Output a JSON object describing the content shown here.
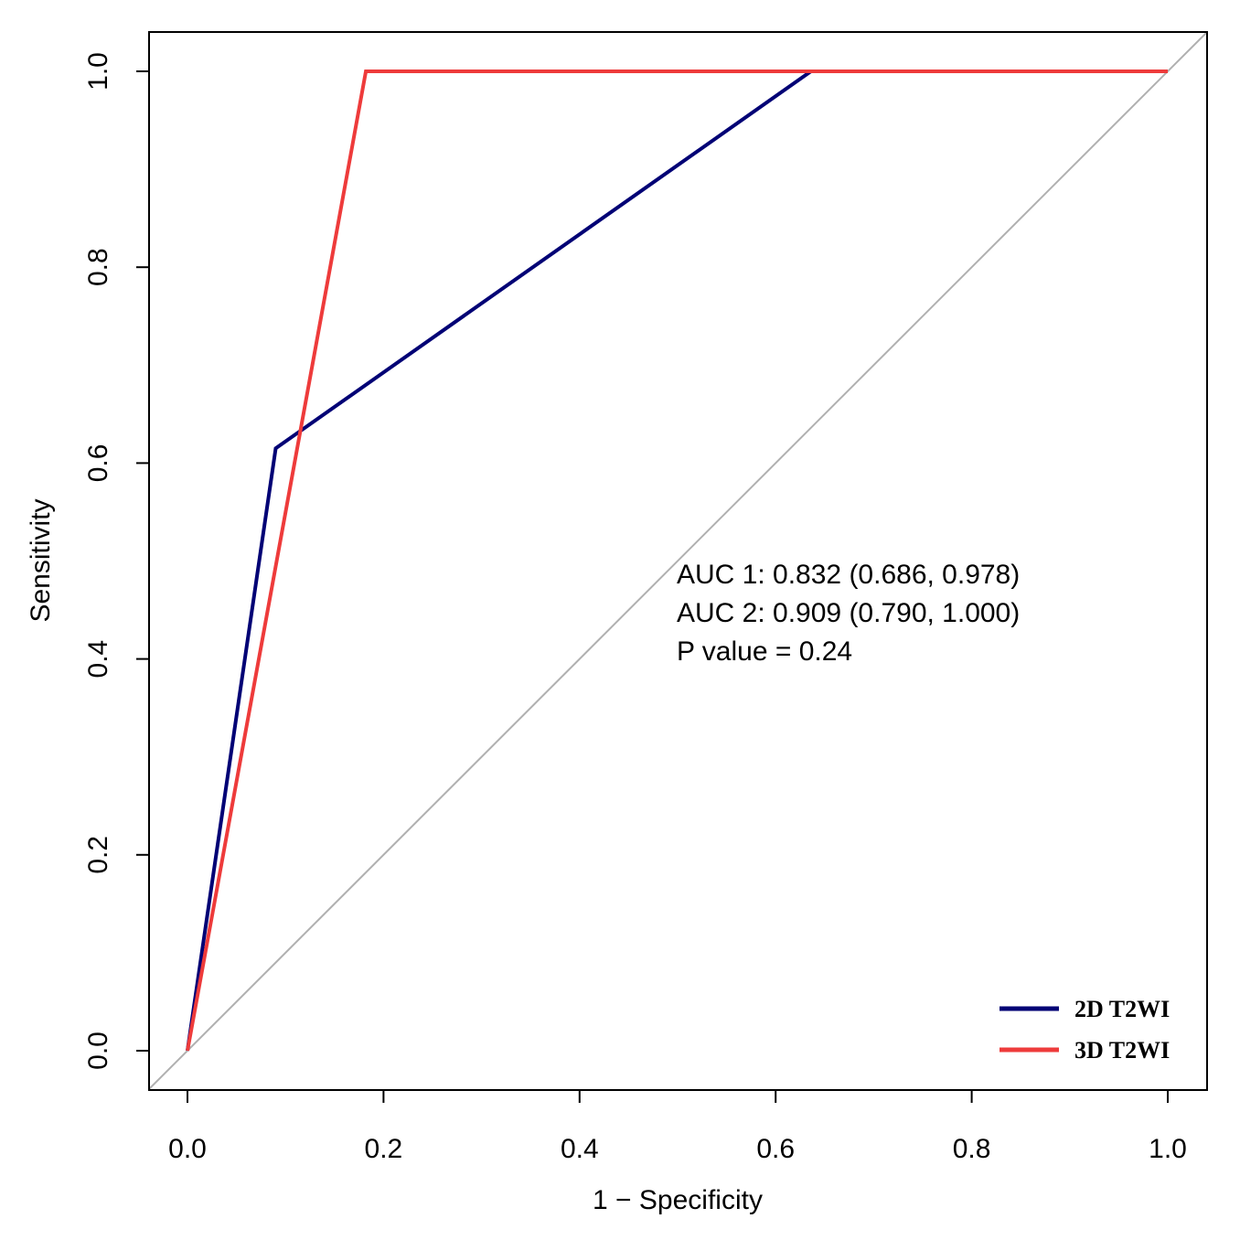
{
  "chart_data": {
    "type": "line",
    "xlabel": "1 − Specificity",
    "ylabel": "Sensitivity",
    "xlim": [
      0.0,
      1.0
    ],
    "ylim": [
      0.0,
      1.0
    ],
    "x_ticks": [
      "0.0",
      "0.2",
      "0.4",
      "0.6",
      "0.8",
      "1.0"
    ],
    "y_ticks": [
      "0.0",
      "0.2",
      "0.4",
      "0.6",
      "0.8",
      "1.0"
    ],
    "grid": false,
    "legend_position": "bottom-right",
    "reference_line": {
      "from": [
        0,
        0
      ],
      "to": [
        1,
        1
      ],
      "color": "#b0b0b0"
    },
    "series": [
      {
        "name": "2D T2WI",
        "color": "#000075",
        "points": [
          [
            0.0,
            0.0
          ],
          [
            0.09,
            0.615
          ],
          [
            0.636,
            1.0
          ],
          [
            1.0,
            1.0
          ]
        ]
      },
      {
        "name": "3D T2WI",
        "color": "#ee3b3b",
        "points": [
          [
            0.0,
            0.0
          ],
          [
            0.182,
            1.0
          ],
          [
            1.0,
            1.0
          ]
        ]
      }
    ],
    "annotations": [
      "AUC 1: 0.832 (0.686, 0.978)",
      "AUC 2: 0.909 (0.790, 1.000)",
      "P value = 0.24"
    ]
  }
}
